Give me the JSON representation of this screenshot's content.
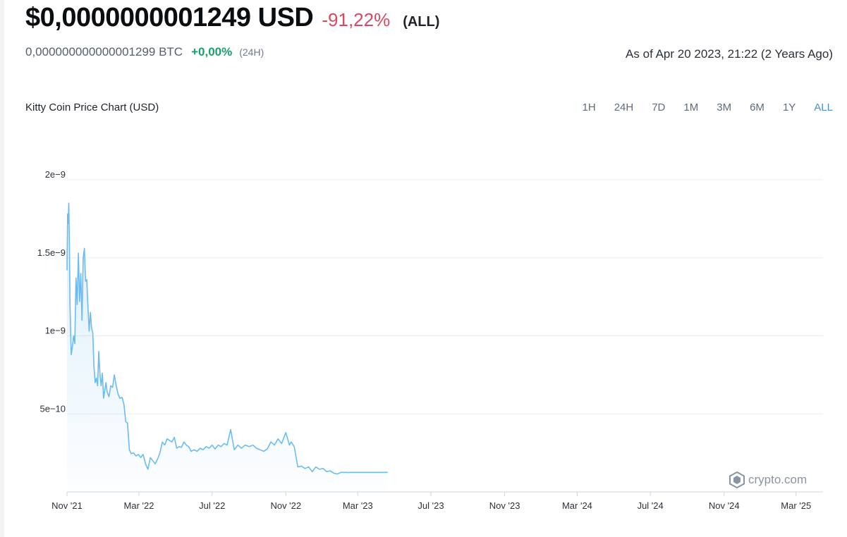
{
  "header": {
    "price": "$0,0000000001249 USD",
    "change": "-91,22%",
    "period": "(ALL)",
    "btc_price": "0,000000000000001299 BTC",
    "btc_change": "+0,00%",
    "btc_period": "(24H)",
    "as_of": "As of Apr 20 2023, 21:22 (2 Years Ago)"
  },
  "ranges": [
    "1H",
    "24H",
    "7D",
    "1M",
    "3M",
    "6M",
    "1Y",
    "ALL"
  ],
  "active_range": "ALL",
  "watermark": {
    "text": "crypto.com",
    "icon": "crypto-com-logo-icon"
  },
  "colors": {
    "line": "#6cbcf0",
    "negative": "#d9485f",
    "positive": "#16a36a",
    "active_range": "#4a8ed8"
  },
  "chart_data": {
    "type": "area",
    "title": "Kitty Coin Price Chart (USD)",
    "xlabel": "",
    "ylabel": "",
    "x_ticks": [
      "Nov '21",
      "Mar '22",
      "Jul '22",
      "Nov '22",
      "Mar '23",
      "Jul '23",
      "Nov '23",
      "Mar '24",
      "Jul '24",
      "Nov '24",
      "Mar '25"
    ],
    "y_ticks": [
      "2e−9",
      "1.5e−9",
      "1e−9",
      "5e−10"
    ],
    "y_tick_values": [
      2e-09,
      1.5e-09,
      1e-09,
      5e-10
    ],
    "ylim": [
      0,
      2e-09
    ],
    "xlim": [
      "2021-11-01",
      "2025-04-15"
    ],
    "grid": true,
    "series": [
      {
        "x": [
          "2021-11-01",
          "2021-11-02",
          "2021-11-03",
          "2021-11-04",
          "2021-11-05",
          "2021-11-06",
          "2021-11-08",
          "2021-11-10",
          "2021-11-12",
          "2021-11-14",
          "2021-11-16",
          "2021-11-18",
          "2021-11-20",
          "2021-11-22",
          "2021-11-24",
          "2021-11-26",
          "2021-11-28",
          "2021-11-30",
          "2021-12-02",
          "2021-12-04",
          "2021-12-06",
          "2021-12-08",
          "2021-12-10",
          "2021-12-12",
          "2021-12-14",
          "2021-12-16",
          "2021-12-18",
          "2021-12-20",
          "2021-12-22",
          "2021-12-24",
          "2021-12-26",
          "2021-12-28",
          "2021-12-30",
          "2022-01-01",
          "2022-01-03",
          "2022-01-05",
          "2022-01-07",
          "2022-01-10",
          "2022-01-13",
          "2022-01-16",
          "2022-01-19",
          "2022-01-22",
          "2022-01-25",
          "2022-01-28",
          "2022-02-01",
          "2022-02-04",
          "2022-02-07",
          "2022-02-10",
          "2022-02-13",
          "2022-02-16",
          "2022-02-20",
          "2022-02-24",
          "2022-02-28",
          "2022-03-04",
          "2022-03-08",
          "2022-03-12",
          "2022-03-16",
          "2022-03-20",
          "2022-03-24",
          "2022-03-28",
          "2022-04-01",
          "2022-04-05",
          "2022-04-09",
          "2022-04-13",
          "2022-04-17",
          "2022-04-21",
          "2022-04-25",
          "2022-04-29",
          "2022-05-03",
          "2022-05-07",
          "2022-05-11",
          "2022-05-15",
          "2022-05-19",
          "2022-05-23",
          "2022-05-27",
          "2022-06-01",
          "2022-06-06",
          "2022-06-11",
          "2022-06-16",
          "2022-06-21",
          "2022-06-26",
          "2022-07-01",
          "2022-07-06",
          "2022-07-11",
          "2022-07-16",
          "2022-07-21",
          "2022-07-26",
          "2022-08-01",
          "2022-08-07",
          "2022-08-13",
          "2022-08-19",
          "2022-08-25",
          "2022-09-01",
          "2022-09-07",
          "2022-09-13",
          "2022-09-19",
          "2022-09-25",
          "2022-10-01",
          "2022-10-07",
          "2022-10-13",
          "2022-10-19",
          "2022-10-25",
          "2022-11-01",
          "2022-11-04",
          "2022-11-07",
          "2022-11-10",
          "2022-11-15",
          "2022-11-21",
          "2022-11-27",
          "2022-12-03",
          "2022-12-09",
          "2022-12-15",
          "2022-12-21",
          "2022-12-27",
          "2023-01-02",
          "2023-01-08",
          "2023-01-14",
          "2023-01-20",
          "2023-01-26",
          "2023-02-01",
          "2023-02-04",
          "2023-02-07",
          "2023-02-10",
          "2023-02-13",
          "2023-02-16",
          "2023-02-19",
          "2023-02-22",
          "2023-02-25",
          "2023-02-28",
          "2023-03-04",
          "2023-03-08",
          "2023-03-12",
          "2023-03-16",
          "2023-03-20",
          "2023-03-24",
          "2023-03-28",
          "2023-04-01",
          "2023-04-05",
          "2023-04-09",
          "2023-04-13",
          "2023-04-17",
          "2023-04-20"
        ],
        "values": [
          1.42e-09,
          1.78e-09,
          1.72e-09,
          1.85e-09,
          1.6e-09,
          1.2e-09,
          8.8e-10,
          9.3e-10,
          1e-09,
          9.5e-10,
          1.37e-09,
          1.2e-09,
          1.53e-09,
          1.22e-09,
          1.4e-09,
          1.1e-09,
          1.5e-09,
          1.56e-09,
          1.35e-09,
          1.36e-09,
          1.18e-09,
          1.03e-09,
          1.15e-09,
          1.05e-09,
          1.02e-09,
          8e-10,
          7e-10,
          7.3e-10,
          6.8e-10,
          9e-10,
          7.5e-10,
          6.8e-10,
          7.6e-10,
          6e-10,
          6.5e-10,
          7e-10,
          6.4e-10,
          6.1e-10,
          6.8e-10,
          6.7e-10,
          7.5e-10,
          6.8e-10,
          6.3e-10,
          6e-10,
          6.05e-10,
          5.6e-10,
          4.5e-10,
          4.4e-10,
          2.7e-10,
          2.45e-10,
          2.5e-10,
          2.3e-10,
          2.4e-10,
          2.2e-10,
          2.4e-10,
          1.8e-10,
          1.45e-10,
          2.2e-10,
          2e-10,
          1.8e-10,
          2.1e-10,
          2.5e-10,
          3.2e-10,
          3e-10,
          3.4e-10,
          3.3e-10,
          3.2e-10,
          3.5e-10,
          2.8e-10,
          2.9e-10,
          2.85e-10,
          3.2e-10,
          3e-10,
          2.9e-10,
          2.6e-10,
          2.7e-10,
          2.6e-10,
          2.8e-10,
          2.7e-10,
          2.9e-10,
          2.8e-10,
          3e-10,
          2.75e-10,
          3e-10,
          2.9e-10,
          3.1e-10,
          3e-10,
          4e-10,
          2.7e-10,
          3e-10,
          2.8e-10,
          3e-10,
          2.9e-10,
          3e-10,
          2.8e-10,
          2.7e-10,
          2.6e-10,
          2.75e-10,
          3.2e-10,
          3e-10,
          3.4e-10,
          3.1e-10,
          3.8e-10,
          3.4e-10,
          3e-10,
          3.2e-10,
          2.9e-10,
          1.6e-10,
          1.65e-10,
          1.5e-10,
          1.6e-10,
          1.3e-10,
          1.6e-10,
          1.45e-10,
          1.5e-10,
          1.3e-10,
          1.35e-10,
          1.2e-10,
          1.15e-10,
          1.25e-10,
          1.25e-10,
          1.249e-10,
          1.25e-10,
          1.24e-10,
          1.25e-10,
          1.249e-10,
          1.25e-10,
          1.249e-10,
          1.25e-10,
          1.249e-10,
          1.25e-10,
          1.249e-10,
          1.25e-10,
          1.249e-10,
          1.25e-10,
          1.249e-10,
          1.25e-10,
          1.249e-10,
          1.25e-10,
          1.249e-10,
          1.25e-10,
          1.249e-10
        ]
      }
    ]
  }
}
